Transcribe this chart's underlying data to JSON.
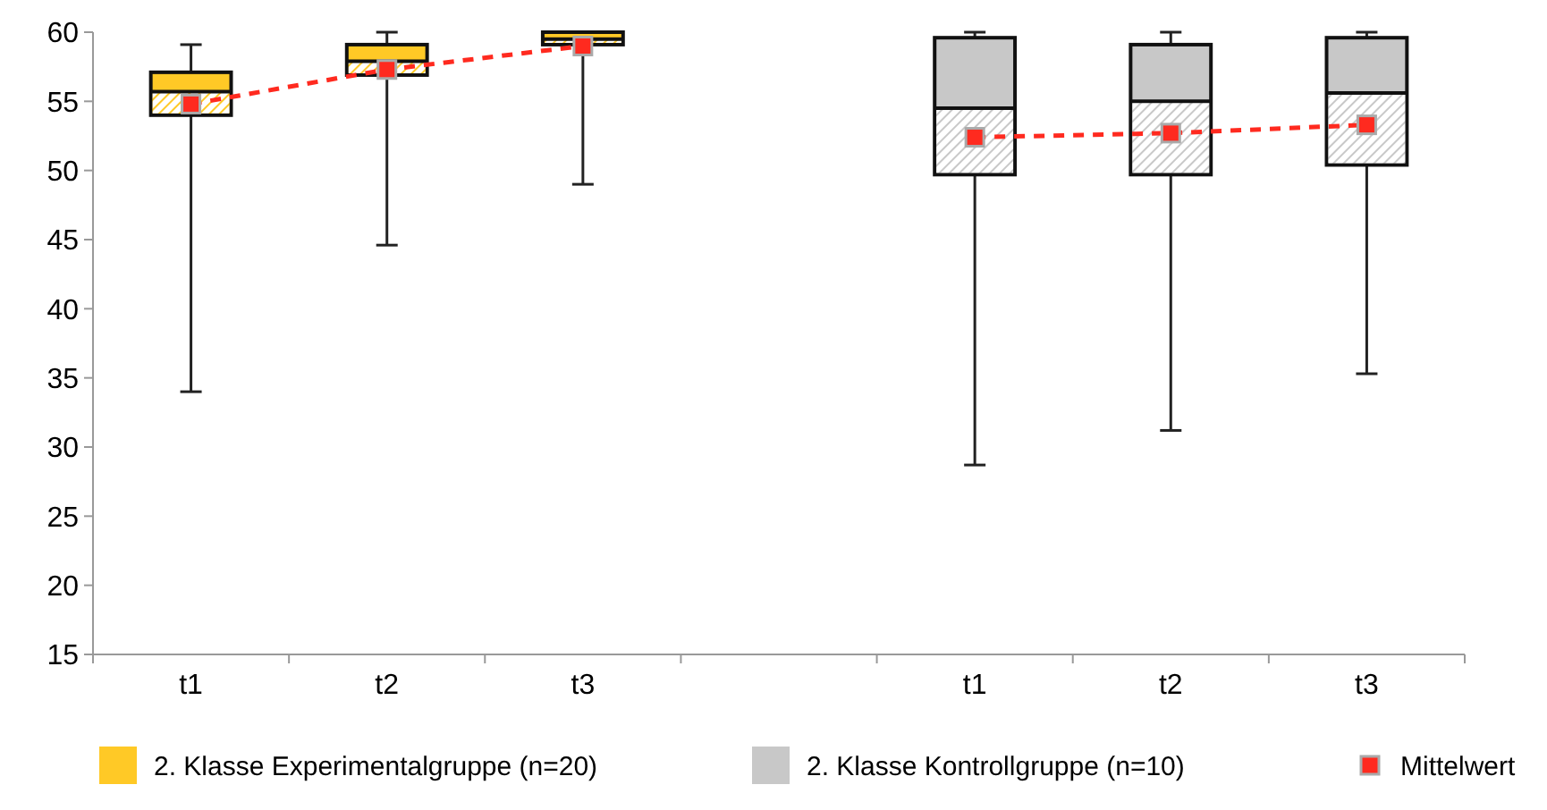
{
  "chart_data": {
    "type": "box",
    "categories": [
      "t1",
      "t2",
      "t3",
      null,
      "t1",
      "t2",
      "t3"
    ],
    "ylim": [
      15,
      60
    ],
    "yticks": [
      15,
      20,
      25,
      30,
      35,
      40,
      45,
      50,
      55,
      60
    ],
    "grid": false,
    "legend": "bottom",
    "series": [
      {
        "name": "2. Klasse Experimentalgruppe (n=20)",
        "color": "#ffc926",
        "boxes": [
          {
            "low": 34,
            "q1": 54,
            "median": 55.7,
            "q3": 57.1,
            "high": 59.1
          },
          {
            "low": 44.6,
            "q1": 56.9,
            "median": 57.9,
            "q3": 59.1,
            "high": 60
          },
          {
            "low": 49,
            "q1": 59.1,
            "median": 59.5,
            "q3": 60,
            "high": 60
          },
          null,
          null,
          null,
          null
        ]
      },
      {
        "name": "2. Klasse Kontrollgruppe (n=10)",
        "color": "#c8c8c8",
        "boxes": [
          null,
          null,
          null,
          null,
          {
            "low": 28.7,
            "q1": 49.7,
            "median": 54.5,
            "q3": 59.6,
            "high": 60
          },
          {
            "low": 31.2,
            "q1": 49.7,
            "median": 55,
            "q3": 59.1,
            "high": 60
          },
          {
            "low": 35.3,
            "q1": 50.4,
            "median": 55.6,
            "q3": 59.6,
            "high": 60
          }
        ]
      },
      {
        "name": "Mittelwert",
        "type": "line",
        "color": "#ff2a1f",
        "marker": "square",
        "line_style": "dashed",
        "values": [
          54.8,
          57.3,
          59.0,
          null,
          52.4,
          52.7,
          53.3
        ]
      }
    ]
  }
}
